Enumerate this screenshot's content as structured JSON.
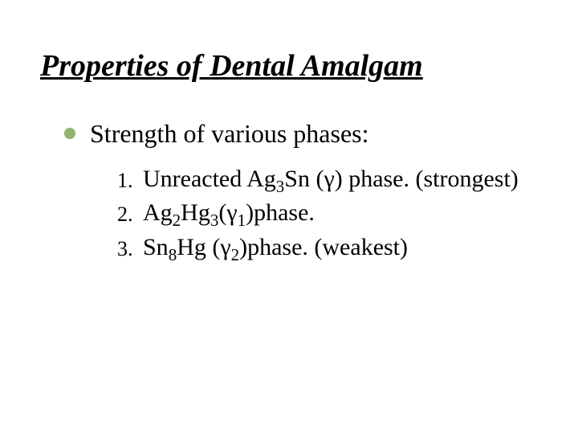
{
  "colors": {
    "background": "#ffffff",
    "bullet": "#91b36e",
    "text": "#000000"
  },
  "typography": {
    "title_family": "Times New Roman",
    "title_italic": true,
    "title_bold": true,
    "title_underline": true,
    "title_fontsize_pt": 38,
    "body_fontsize_pt": 32,
    "list_fontsize_pt": 30,
    "list_num_fontsize_pt": 26
  },
  "title": "Properties of Dental Amalgam",
  "lead": "Strength of various phases:",
  "items": [
    {
      "num": "1.",
      "text_html": "Unreacted Ag<sub>3</sub>Sn (γ) phase. (strongest)"
    },
    {
      "num": "2.",
      "text_html": "Ag<sub>2</sub>Hg<sub>3</sub>(γ<sub>1</sub>)phase."
    },
    {
      "num": "3.",
      "text_html": "Sn<sub>8</sub>Hg (γ<sub>2</sub>)phase. (weakest)"
    }
  ]
}
